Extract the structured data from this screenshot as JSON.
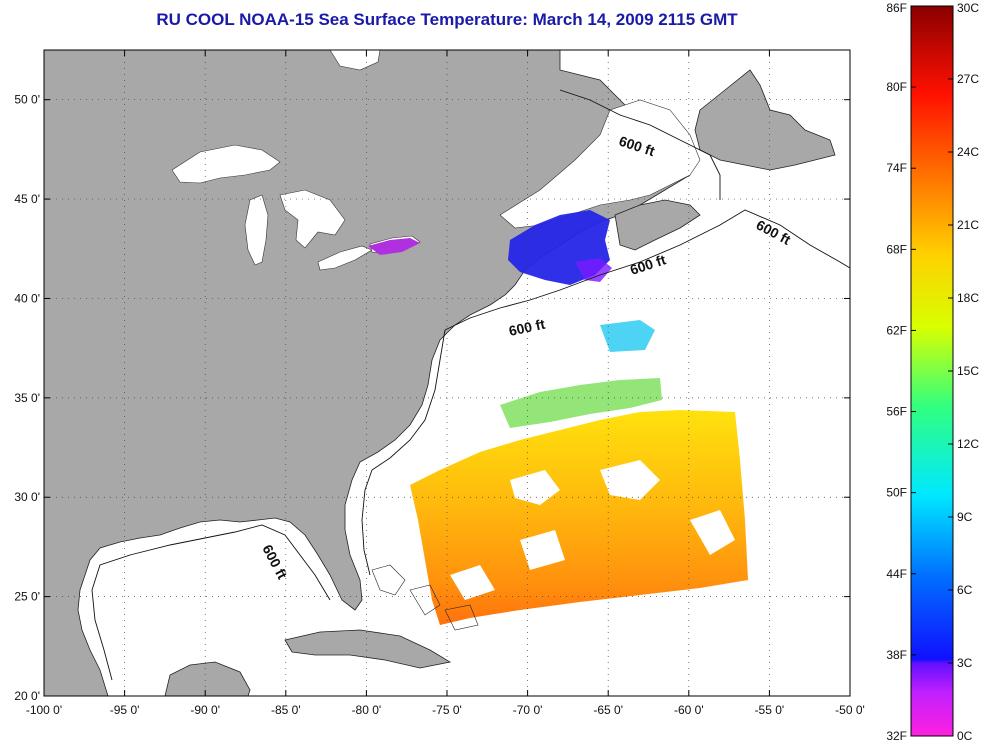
{
  "title": "RU COOL  NOAA-15  Sea Surface Temperature:  March 14, 2009 2115 GMT",
  "map": {
    "lon_range": [
      -100,
      -50
    ],
    "lat_range": [
      20,
      52.5
    ],
    "lat_ticks": [
      "20 0'",
      "25 0'",
      "30 0'",
      "35 0'",
      "40 0'",
      "45 0'",
      "50 0'"
    ],
    "lon_ticks": [
      "-100 0'",
      "-95 0'",
      "-90 0'",
      "-85 0'",
      "-80 0'",
      "-75 0'",
      "-70 0'",
      "-65 0'",
      "-60 0'",
      "-55 0'",
      "-50 0'"
    ],
    "grid": "dotted",
    "land_color": "#a8a8a8",
    "water_color": "#ffffff",
    "contour_labels": [
      "600 ft",
      "600 ft",
      "600 ft",
      "600 ft",
      "600 ft"
    ]
  },
  "colorbar": {
    "fahrenheit": [
      "86F",
      "80F",
      "74F",
      "68F",
      "62F",
      "56F",
      "50F",
      "44F",
      "38F",
      "32F"
    ],
    "celsius": [
      "30C",
      "27C",
      "24C",
      "21C",
      "18C",
      "15C",
      "12C",
      "9C",
      "6C",
      "3C",
      "0C"
    ],
    "colors": [
      "#ff20d0",
      "#8a20ff",
      "#1010ff",
      "#0080ff",
      "#00f0ff",
      "#30ff90",
      "#d0ff00",
      "#ffd000",
      "#ff7a00",
      "#ff1000",
      "#900000"
    ]
  }
}
